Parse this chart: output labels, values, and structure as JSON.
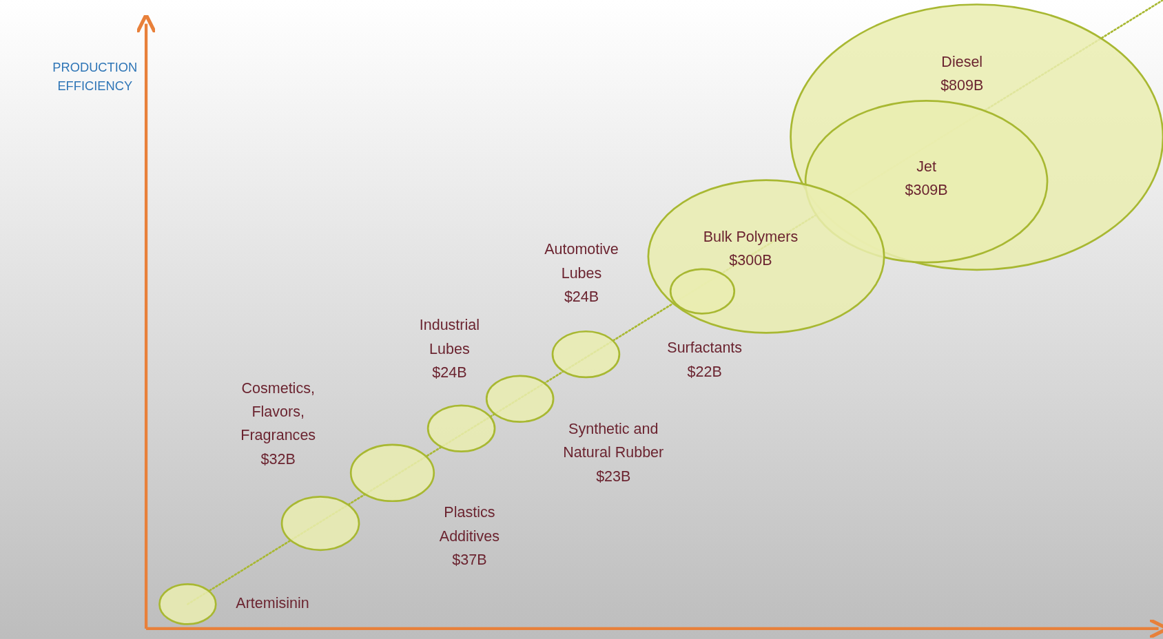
{
  "chart_data": {
    "type": "other",
    "ylabel": "PRODUCTION EFFICIENCY",
    "color": "#eaedb0",
    "categories": [
      "Artemisinin",
      "Cosmetics, Flavors, Fragrances",
      "Plastics Additives",
      "Industrial Lubes",
      "Synthetic and Natural Rubber",
      "Automotive Lubes",
      "Surfactants",
      "Bulk Polymers",
      "Jet",
      "Diesel"
    ],
    "values": [
      null,
      32,
      37,
      24,
      23,
      24,
      22,
      300,
      309,
      809
    ],
    "value_labels": [
      null,
      "$32B",
      "$37B",
      "$24B",
      "$23B",
      "$24B",
      "$22B",
      "$300B",
      "$309B",
      "$809B"
    ]
  }
}
